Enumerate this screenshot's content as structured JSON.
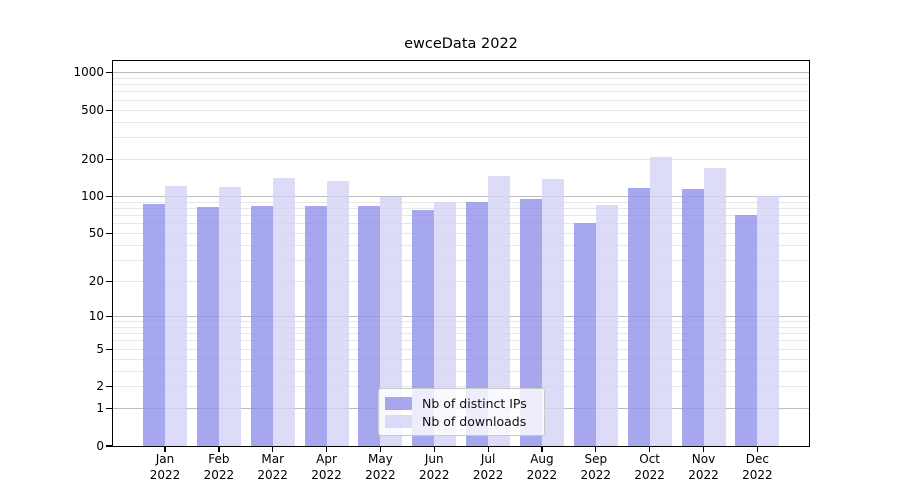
{
  "chart": {
    "title": "ewceData 2022",
    "colors": {
      "ips_bar": "#9191ea",
      "downloads_bar": "#d3d3f7",
      "bar_alpha": "0.8",
      "grid_major": "#bdbdbd",
      "grid_minor": "#e7e7e7",
      "axis": "#000000",
      "legend_border": "#c9c9c9"
    },
    "legend": {
      "items": [
        {
          "label": "Nb of distinct IPs",
          "series": "ips"
        },
        {
          "label": "Nb of downloads",
          "series": "downloads"
        }
      ]
    }
  },
  "chart_data": {
    "type": "bar",
    "title": "ewceData 2022",
    "categories": [
      "Jan",
      "Feb",
      "Mar",
      "Apr",
      "May",
      "Jun",
      "Jul",
      "Aug",
      "Sep",
      "Oct",
      "Nov",
      "Dec"
    ],
    "year_label": "2022",
    "series": [
      {
        "name": "Nb of distinct IPs",
        "color": "#9191ea",
        "values": [
          87,
          82,
          84,
          84,
          84,
          78,
          90,
          95,
          61,
          118,
          116,
          71
        ]
      },
      {
        "name": "Nb of downloads",
        "color": "#d3d3f7",
        "values": [
          122,
          121,
          143,
          135,
          100,
          90,
          148,
          138,
          86,
          210,
          172,
          101
        ]
      }
    ],
    "xlabel": "",
    "ylabel": "",
    "yscale": "log1p",
    "yticks": [
      0,
      1,
      2,
      5,
      10,
      20,
      50,
      100,
      200,
      500,
      1000
    ],
    "major_gridlines": [
      1,
      10,
      100,
      1000
    ],
    "minor_gridlines": [
      2,
      3,
      4,
      5,
      6,
      7,
      8,
      9,
      20,
      30,
      40,
      50,
      60,
      70,
      80,
      90,
      200,
      300,
      400,
      500,
      600,
      700,
      800,
      900
    ],
    "ylim": [
      0,
      1150
    ],
    "grid": true,
    "legend_position": "lower center"
  }
}
